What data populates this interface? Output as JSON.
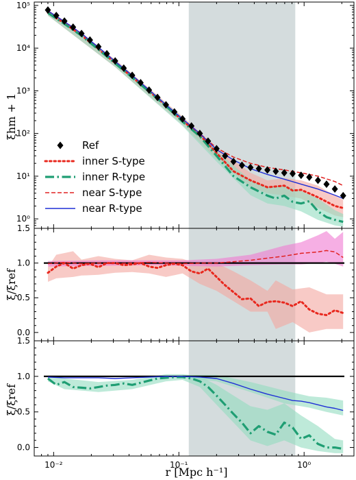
{
  "chart_data": {
    "type": "line",
    "x_scale": "log",
    "xlim": [
      0.007,
      2.5
    ],
    "xlabel": "r [Mpc h⁻¹]",
    "x_tick_labels": [
      "10⁻²",
      "10⁻¹",
      "10⁰"
    ],
    "shaded_x_range": [
      0.12,
      0.85
    ],
    "colors": {
      "ref": "#000000",
      "inner_s": "#e8281e",
      "inner_r": "#1f9e73",
      "near_s": "#e02020",
      "near_r": "#1f2fd6",
      "shade": "#c6d0d2",
      "band_inner_s": "#f4a6a0",
      "band_inner_r": "#92dcc0",
      "band_near_s": "#f07ad2"
    },
    "panels": [
      {
        "name": "top",
        "ylabel": "ξhm + 1",
        "y_scale": "log",
        "ylim": [
          0.6,
          120000
        ],
        "y_tick_labels": [
          "10⁰",
          "10¹",
          "10²",
          "10³",
          "10⁴",
          "10⁵"
        ],
        "legend": {
          "placement": "lower-left",
          "entries": [
            "Ref",
            "inner S-type",
            "inner R-type",
            "near S-type",
            "near R-type"
          ]
        },
        "series": [
          {
            "name": "Ref",
            "style": "diamond",
            "x": [
              0.009,
              0.0105,
              0.0122,
              0.0143,
              0.0167,
              0.0195,
              0.0228,
              0.0266,
              0.031,
              0.0363,
              0.0424,
              0.0495,
              0.0578,
              0.0675,
              0.0789,
              0.0921,
              0.107,
              0.126,
              0.147,
              0.171,
              0.2,
              0.234,
              0.273,
              0.319,
              0.373,
              0.435,
              0.509,
              0.594,
              0.694,
              0.81,
              0.946,
              1.1,
              1.29,
              1.51,
              1.76,
              2.05
            ],
            "y": [
              78000,
              58000,
              43000,
              31000,
              22000,
              15500,
              10800,
              7400,
              5000,
              3400,
              2300,
              1550,
              1040,
              700,
              470,
              320,
              220,
              150,
              100,
              66,
              44,
              30,
              22,
              18,
              16,
              15,
              14,
              13,
              12,
              11.5,
              10.5,
              9.5,
              8,
              6.5,
              5,
              3.5
            ]
          },
          {
            "name": "inner S-type",
            "style": "dotted",
            "x": [
              0.009,
              0.0122,
              0.0167,
              0.0228,
              0.031,
              0.0424,
              0.0578,
              0.0789,
              0.107,
              0.147,
              0.2,
              0.273,
              0.373,
              0.509,
              0.694,
              0.81,
              0.946,
              1.29,
              1.76,
              2.05
            ],
            "y": [
              68000,
              38000,
              20000,
              9500,
              4500,
              2100,
              980,
              450,
              200,
              92,
              35,
              13,
              8,
              5.5,
              6,
              4.6,
              4.8,
              3.2,
              2,
              1.8
            ]
          },
          {
            "name": "inner R-type",
            "style": "dashdot",
            "x": [
              0.009,
              0.0122,
              0.0167,
              0.0228,
              0.031,
              0.0424,
              0.0578,
              0.0789,
              0.107,
              0.147,
              0.2,
              0.273,
              0.373,
              0.509,
              0.594,
              0.694,
              0.81,
              0.946,
              1.1,
              1.29,
              1.51,
              1.76,
              2.05
            ],
            "y": [
              67000,
              37000,
              19500,
              9300,
              4400,
              2050,
              960,
              440,
              190,
              86,
              30,
              10,
              5.5,
              3.5,
              3,
              3.5,
              2.5,
              2.3,
              2.6,
              1.5,
              1.1,
              0.95,
              0.85
            ]
          },
          {
            "name": "near S-type",
            "style": "dashed",
            "x": [
              0.009,
              0.0122,
              0.0167,
              0.0228,
              0.031,
              0.0424,
              0.0578,
              0.0789,
              0.107,
              0.147,
              0.2,
              0.273,
              0.373,
              0.509,
              0.694,
              0.946,
              1.29,
              1.76,
              2.05
            ],
            "y": [
              74000,
              42000,
              22000,
              10500,
              4900,
              2300,
              1050,
              470,
              220,
              100,
              46,
              28,
              20,
              16,
              14,
              12,
              10,
              7.5,
              6
            ]
          },
          {
            "name": "near R-type",
            "style": "solid",
            "x": [
              0.009,
              0.0122,
              0.0167,
              0.0228,
              0.031,
              0.0424,
              0.0578,
              0.0789,
              0.107,
              0.147,
              0.2,
              0.273,
              0.373,
              0.509,
              0.694,
              0.946,
              1.29,
              1.76,
              2.05
            ],
            "y": [
              75000,
              42000,
              22000,
              10500,
              4900,
              2300,
              1050,
              470,
              220,
              100,
              42,
              24,
              15,
              11,
              8.5,
              6.5,
              5,
              3.6,
              3
            ]
          }
        ],
        "bands": [
          {
            "color_key": "band_inner_s",
            "x": [
              0.009,
              0.031,
              0.107,
              0.2,
              0.373,
              0.509,
              0.694,
              0.946,
              1.29,
              1.76,
              2.05
            ],
            "y_low": [
              58000,
              3600,
              160,
              25,
              5.5,
              4,
              3.5,
              3,
              1.8,
              1.2,
              1.1
            ],
            "y_high": [
              80000,
              5400,
              250,
              46,
              12,
              8,
              9,
              8,
              6,
              3.5,
              2.8
            ]
          },
          {
            "color_key": "band_inner_r",
            "x": [
              0.009,
              0.031,
              0.107,
              0.2,
              0.373,
              0.509,
              0.694,
              0.946,
              1.29,
              1.76,
              2.05
            ],
            "y_low": [
              58000,
              3600,
              150,
              22,
              3.6,
              2.3,
              2,
              1.5,
              0.95,
              0.7,
              0.65
            ],
            "y_high": [
              78000,
              5200,
              240,
              40,
              8,
              5.5,
              6,
              4.5,
              3,
              1.6,
              1.3
            ]
          }
        ]
      },
      {
        "name": "middle",
        "ylabel": "ξ/ξref",
        "y_scale": "linear",
        "ylim": [
          -0.12,
          1.5
        ],
        "y_ticks": [
          0.0,
          0.5,
          1.0,
          1.5
        ],
        "y_tick_labels": [
          "0.0",
          "0.5",
          "1.0",
          "1.5"
        ],
        "reference_line": 1.0,
        "series": [
          {
            "name": "inner S-type",
            "style": "dotted",
            "x": [
              0.009,
              0.0105,
              0.0122,
              0.0143,
              0.0167,
              0.0195,
              0.0228,
              0.0266,
              0.031,
              0.0363,
              0.0424,
              0.0495,
              0.0578,
              0.0675,
              0.0789,
              0.0921,
              0.107,
              0.126,
              0.147,
              0.171,
              0.2,
              0.234,
              0.273,
              0.319,
              0.373,
              0.435,
              0.509,
              0.594,
              0.694,
              0.81,
              0.946,
              1.1,
              1.29,
              1.51,
              1.76,
              2.05
            ],
            "y": [
              0.86,
              0.95,
              1.0,
              0.92,
              0.97,
              0.99,
              0.94,
              1.0,
              1.0,
              0.97,
              0.98,
              1.0,
              0.95,
              0.93,
              0.97,
              0.99,
              0.97,
              0.88,
              0.85,
              0.92,
              0.8,
              0.68,
              0.58,
              0.48,
              0.49,
              0.38,
              0.44,
              0.45,
              0.43,
              0.38,
              0.45,
              0.33,
              0.27,
              0.25,
              0.32,
              0.28
            ]
          },
          {
            "name": "near S-type",
            "style": "dashed",
            "x": [
              0.009,
              0.0122,
              0.0167,
              0.0228,
              0.031,
              0.0424,
              0.0578,
              0.0789,
              0.107,
              0.147,
              0.2,
              0.273,
              0.373,
              0.509,
              0.694,
              0.946,
              1.29,
              1.51,
              1.76,
              2.05
            ],
            "y": [
              0.99,
              1.01,
              0.99,
              1.0,
              0.99,
              1.0,
              1.01,
              1.0,
              0.99,
              1.0,
              1.0,
              1.02,
              1.04,
              1.07,
              1.1,
              1.14,
              1.16,
              1.18,
              1.16,
              1.08
            ]
          }
        ],
        "bands": [
          {
            "color_key": "band_inner_s",
            "x": [
              0.009,
              0.0105,
              0.0143,
              0.0167,
              0.0228,
              0.031,
              0.0424,
              0.0578,
              0.0789,
              0.107,
              0.147,
              0.2,
              0.273,
              0.373,
              0.509,
              0.594,
              0.81,
              1.1,
              1.51,
              2.05
            ],
            "y_low": [
              0.73,
              0.78,
              0.8,
              0.82,
              0.83,
              0.86,
              0.87,
              0.85,
              0.8,
              0.85,
              0.7,
              0.6,
              0.45,
              0.3,
              0.3,
              0.05,
              0.15,
              0.0,
              0.05,
              0.05
            ],
            "y_high": [
              0.94,
              1.12,
              1.17,
              1.05,
              1.1,
              1.06,
              1.04,
              1.12,
              1.08,
              1.06,
              0.98,
              1.0,
              0.88,
              0.75,
              0.6,
              0.75,
              0.62,
              0.65,
              0.55,
              0.55
            ]
          },
          {
            "color_key": "band_near_s",
            "x": [
              0.009,
              0.0228,
              0.0578,
              0.107,
              0.2,
              0.373,
              0.694,
              0.946,
              1.29,
              1.51,
              1.76,
              2.05
            ],
            "y_low": [
              0.95,
              0.96,
              0.97,
              0.96,
              0.95,
              0.97,
              0.98,
              0.98,
              1.0,
              1.02,
              0.99,
              0.95
            ],
            "y_high": [
              1.03,
              1.04,
              1.04,
              1.04,
              1.06,
              1.12,
              1.25,
              1.3,
              1.4,
              1.46,
              1.35,
              1.45
            ]
          }
        ]
      },
      {
        "name": "bottom",
        "ylabel": "ξ/ξref",
        "y_scale": "linear",
        "ylim": [
          -0.12,
          1.5
        ],
        "y_ticks": [
          0.0,
          0.5,
          1.0,
          1.5
        ],
        "y_tick_labels": [
          "0.0",
          "0.5",
          "1.0",
          "1.5"
        ],
        "reference_line": 1.0,
        "series": [
          {
            "name": "inner R-type",
            "style": "dashdot",
            "x": [
              0.009,
              0.0105,
              0.0122,
              0.0143,
              0.0167,
              0.0195,
              0.0228,
              0.0266,
              0.031,
              0.0363,
              0.0424,
              0.0495,
              0.0578,
              0.0675,
              0.0789,
              0.0921,
              0.107,
              0.126,
              0.147,
              0.171,
              0.2,
              0.234,
              0.273,
              0.319,
              0.373,
              0.435,
              0.509,
              0.594,
              0.694,
              0.81,
              0.946,
              1.1,
              1.29,
              1.51,
              1.76,
              2.05
            ],
            "y": [
              0.97,
              0.88,
              0.92,
              0.85,
              0.84,
              0.83,
              0.85,
              0.87,
              0.88,
              0.9,
              0.88,
              0.91,
              0.94,
              0.97,
              0.98,
              0.99,
              0.99,
              0.97,
              0.93,
              0.85,
              0.73,
              0.6,
              0.47,
              0.35,
              0.2,
              0.3,
              0.22,
              0.18,
              0.35,
              0.28,
              0.12,
              0.17,
              0.05,
              0.0,
              0.0,
              -0.02
            ]
          },
          {
            "name": "near R-type",
            "style": "solid",
            "x": [
              0.009,
              0.0122,
              0.0167,
              0.0228,
              0.031,
              0.0424,
              0.0578,
              0.0789,
              0.107,
              0.147,
              0.2,
              0.273,
              0.373,
              0.509,
              0.694,
              0.81,
              0.946,
              1.1,
              1.29,
              1.51,
              1.76,
              2.05
            ],
            "y": [
              0.99,
              0.98,
              0.98,
              0.98,
              0.97,
              0.98,
              0.99,
              1.0,
              1.0,
              0.99,
              0.97,
              0.9,
              0.82,
              0.75,
              0.69,
              0.66,
              0.65,
              0.63,
              0.6,
              0.57,
              0.55,
              0.52
            ]
          }
        ],
        "bands": [
          {
            "color_key": "band_inner_r",
            "x": [
              0.009,
              0.0122,
              0.0228,
              0.0424,
              0.0789,
              0.107,
              0.147,
              0.2,
              0.273,
              0.373,
              0.509,
              0.694,
              0.946,
              1.29,
              1.76,
              2.05
            ],
            "y_low": [
              0.93,
              0.82,
              0.78,
              0.82,
              0.93,
              0.95,
              0.85,
              0.6,
              0.35,
              0.1,
              0.02,
              0.1,
              0.0,
              -0.05,
              -0.08,
              -0.08
            ],
            "y_high": [
              1.0,
              0.97,
              0.92,
              0.95,
              1.03,
              1.03,
              1.0,
              0.88,
              0.73,
              0.58,
              0.53,
              0.62,
              0.45,
              0.3,
              0.12,
              0.1
            ]
          },
          {
            "color_key": "band_inner_r",
            "x": [
              0.107,
              0.2,
              0.373,
              0.694,
              1.1,
              1.51,
              2.05
            ],
            "y_low": [
              0.98,
              0.93,
              0.78,
              0.62,
              0.56,
              0.5,
              0.45
            ],
            "y_high": [
              1.02,
              1.02,
              0.92,
              0.8,
              0.72,
              0.7,
              0.66
            ]
          }
        ]
      }
    ]
  }
}
